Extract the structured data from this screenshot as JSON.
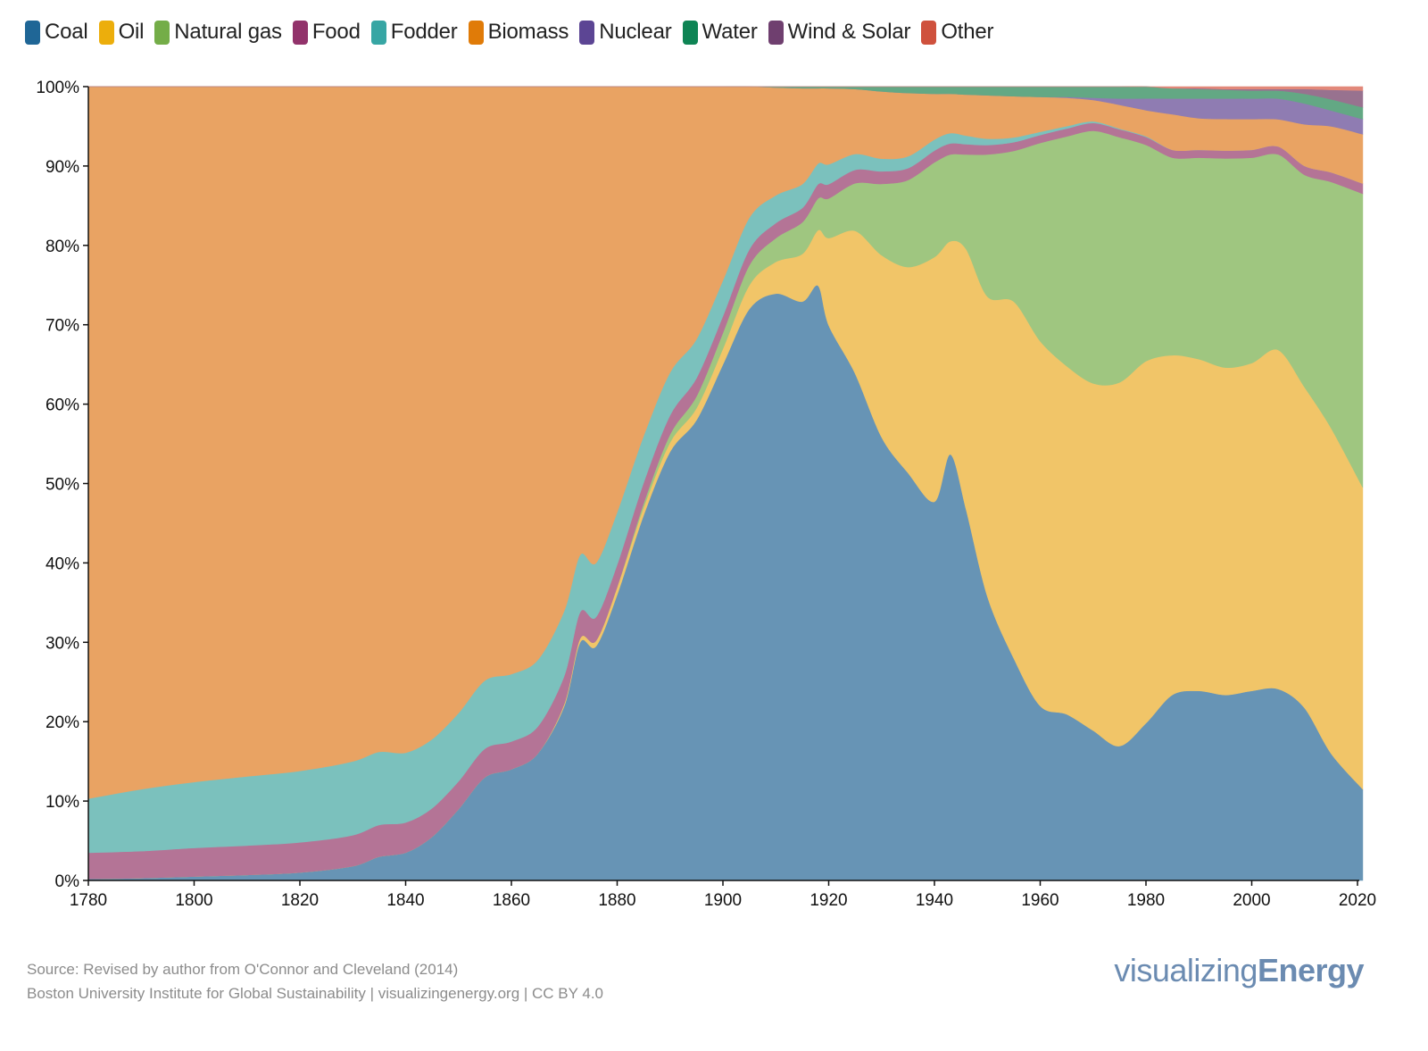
{
  "legend": [
    {
      "name": "Coal",
      "color": "#1f6696"
    },
    {
      "name": "Oil",
      "color": "#ecae0c"
    },
    {
      "name": "Natural gas",
      "color": "#74ad48"
    },
    {
      "name": "Food",
      "color": "#92336b"
    },
    {
      "name": "Fodder",
      "color": "#37a6a4"
    },
    {
      "name": "Biomass",
      "color": "#e07b08"
    },
    {
      "name": "Nuclear",
      "color": "#5c4594"
    },
    {
      "name": "Water",
      "color": "#0e8454"
    },
    {
      "name": "Wind & Solar",
      "color": "#6f3f6f"
    },
    {
      "name": "Other",
      "color": "#cf513d"
    }
  ],
  "footer": {
    "source": "Source: Revised by author from O'Connor and Cleveland (2014)",
    "credit": "Boston University Institute for Global Sustainability | visualizingenergy.org | CC BY 4.0"
  },
  "brand": {
    "light": "visualizing",
    "bold": "Energy"
  },
  "chart_data": {
    "type": "area",
    "stacked": true,
    "normalized": true,
    "title": "",
    "xlabel": "",
    "ylabel": "",
    "xlim": [
      1780,
      2021
    ],
    "ylim": [
      0,
      100
    ],
    "x_ticks": [
      "1780",
      "1800",
      "1820",
      "1840",
      "1860",
      "1880",
      "1900",
      "1920",
      "1940",
      "1960",
      "1980",
      "2000",
      "2020"
    ],
    "y_ticks": [
      "0%",
      "10%",
      "20%",
      "30%",
      "40%",
      "50%",
      "60%",
      "70%",
      "80%",
      "90%",
      "100%"
    ],
    "grid": false,
    "legend_position": "top-left",
    "x": [
      1780,
      1790,
      1800,
      1810,
      1820,
      1830,
      1835,
      1840,
      1845,
      1850,
      1855,
      1860,
      1865,
      1870,
      1873,
      1876,
      1880,
      1885,
      1890,
      1895,
      1900,
      1905,
      1910,
      1915,
      1918,
      1920,
      1925,
      1930,
      1935,
      1940,
      1943,
      1946,
      1950,
      1955,
      1960,
      1965,
      1970,
      1975,
      1980,
      1985,
      1990,
      1995,
      2000,
      2005,
      2010,
      2015,
      2021
    ],
    "series": [
      {
        "name": "Coal",
        "values": [
          0.2,
          0.3,
          0.5,
          0.7,
          1.0,
          1.8,
          3.0,
          3.5,
          5.5,
          9.0,
          13.0,
          14.0,
          16.0,
          22.0,
          30.0,
          29.5,
          36.0,
          46.0,
          54.0,
          58.0,
          65.0,
          72.0,
          74.0,
          73.0,
          75.0,
          70.0,
          64.0,
          56.0,
          51.5,
          48.0,
          54.0,
          47.0,
          36.0,
          28.0,
          22.0,
          21.0,
          19.0,
          17.0,
          20.0,
          23.5,
          24.0,
          23.5,
          24.0,
          24.0,
          21.5,
          16.0,
          11.5
        ]
      },
      {
        "name": "Oil",
        "values": [
          0.0,
          0.0,
          0.0,
          0.0,
          0.0,
          0.0,
          0.0,
          0.0,
          0.0,
          0.0,
          0.0,
          0.0,
          0.0,
          0.3,
          0.5,
          0.7,
          1.0,
          1.0,
          1.2,
          1.5,
          2.0,
          3.0,
          4.0,
          6.0,
          7.0,
          11.0,
          18.0,
          23.0,
          26.0,
          31.0,
          27.0,
          33.0,
          38.0,
          45.0,
          46.0,
          44.0,
          44.0,
          46.0,
          46.0,
          43.0,
          42.0,
          41.5,
          41.5,
          42.5,
          40.0,
          41.0,
          38.0
        ]
      },
      {
        "name": "Natural gas",
        "values": [
          0.0,
          0.0,
          0.0,
          0.0,
          0.0,
          0.0,
          0.0,
          0.0,
          0.0,
          0.0,
          0.0,
          0.0,
          0.0,
          0.0,
          0.0,
          0.0,
          0.0,
          0.5,
          1.0,
          1.5,
          2.0,
          2.5,
          3.0,
          4.0,
          4.0,
          5.0,
          6.0,
          9.0,
          11.0,
          12.0,
          11.0,
          12.0,
          18.0,
          19.0,
          25.0,
          29.0,
          32.0,
          31.0,
          27.5,
          25.0,
          25.5,
          26.5,
          26.0,
          24.5,
          26.5,
          31.0,
          37.0
        ]
      },
      {
        "name": "Food",
        "values": [
          3.3,
          3.4,
          3.6,
          3.7,
          3.8,
          3.9,
          4.0,
          3.8,
          3.6,
          3.5,
          3.6,
          3.5,
          3.4,
          3.5,
          3.3,
          3.0,
          2.8,
          2.6,
          2.4,
          2.3,
          2.1,
          2.0,
          1.9,
          1.8,
          1.8,
          1.8,
          1.7,
          1.6,
          1.5,
          1.5,
          1.4,
          1.3,
          1.2,
          1.1,
          1.0,
          1.0,
          1.0,
          1.0,
          1.0,
          1.0,
          1.0,
          1.0,
          1.0,
          1.0,
          1.1,
          1.2,
          1.3
        ]
      },
      {
        "name": "Fodder",
        "values": [
          6.8,
          7.8,
          8.3,
          8.7,
          9.0,
          9.3,
          9.2,
          8.8,
          8.7,
          8.6,
          8.6,
          8.5,
          8.4,
          8.2,
          7.2,
          6.8,
          6.6,
          5.9,
          5.4,
          4.9,
          4.5,
          4.0,
          3.5,
          3.0,
          2.6,
          2.5,
          2.0,
          1.6,
          1.5,
          1.4,
          1.3,
          1.1,
          0.8,
          0.6,
          0.4,
          0.3,
          0.2,
          0.1,
          0.1,
          0.0,
          0.0,
          0.0,
          0.0,
          0.0,
          0.0,
          0.0,
          0.0
        ]
      },
      {
        "name": "Biomass",
        "values": [
          89.7,
          88.5,
          87.6,
          86.9,
          86.2,
          85.0,
          83.8,
          83.9,
          82.2,
          78.9,
          74.8,
          74.0,
          72.2,
          66.0,
          59.0,
          60.0,
          53.6,
          44.0,
          36.0,
          31.8,
          24.4,
          16.5,
          13.6,
          12.1,
          9.5,
          9.6,
          8.2,
          8.5,
          8.0,
          5.8,
          5.0,
          5.2,
          5.5,
          5.2,
          4.4,
          3.6,
          2.7,
          3.0,
          3.3,
          4.5,
          4.0,
          4.0,
          3.9,
          3.4,
          5.2,
          5.8,
          6.2
        ]
      },
      {
        "name": "Nuclear",
        "values": [
          0,
          0,
          0,
          0,
          0,
          0,
          0,
          0,
          0,
          0,
          0,
          0,
          0,
          0,
          0,
          0,
          0,
          0,
          0,
          0,
          0,
          0,
          0,
          0,
          0,
          0,
          0,
          0,
          0,
          0,
          0,
          0,
          0,
          0,
          0.0,
          0.1,
          0.3,
          0.8,
          1.5,
          2.0,
          2.5,
          2.6,
          2.6,
          2.6,
          2.6,
          2.0,
          1.9
        ]
      },
      {
        "name": "Water",
        "values": [
          0,
          0,
          0,
          0,
          0,
          0,
          0,
          0,
          0,
          0,
          0,
          0,
          0,
          0,
          0,
          0,
          0,
          0,
          0,
          0,
          0.0,
          0.0,
          0.1,
          0.2,
          0.2,
          0.2,
          0.3,
          0.6,
          0.8,
          0.9,
          0.9,
          1.0,
          1.1,
          1.2,
          1.3,
          1.3,
          1.4,
          1.5,
          1.5,
          1.3,
          1.2,
          1.1,
          1.0,
          1.0,
          1.2,
          1.4,
          1.5
        ]
      },
      {
        "name": "Wind & Solar",
        "values": [
          0,
          0,
          0,
          0,
          0,
          0,
          0,
          0,
          0,
          0,
          0,
          0,
          0,
          0,
          0,
          0,
          0,
          0,
          0,
          0,
          0,
          0,
          0,
          0,
          0,
          0,
          0,
          0,
          0,
          0,
          0,
          0,
          0,
          0,
          0,
          0,
          0,
          0,
          0,
          0,
          0.1,
          0.1,
          0.2,
          0.2,
          0.6,
          1.2,
          2.1
        ]
      },
      {
        "name": "Other",
        "values": [
          0,
          0,
          0,
          0,
          0,
          0,
          0,
          0,
          0,
          0,
          0,
          0,
          0,
          0,
          0,
          0,
          0,
          0,
          0,
          0,
          0,
          0,
          0,
          0,
          0,
          0,
          0,
          0,
          0,
          0,
          0,
          0,
          0,
          0,
          0,
          0,
          0,
          0,
          0,
          0.2,
          0.2,
          0.3,
          0.3,
          0.3,
          0.3,
          0.4,
          0.5
        ]
      }
    ]
  }
}
